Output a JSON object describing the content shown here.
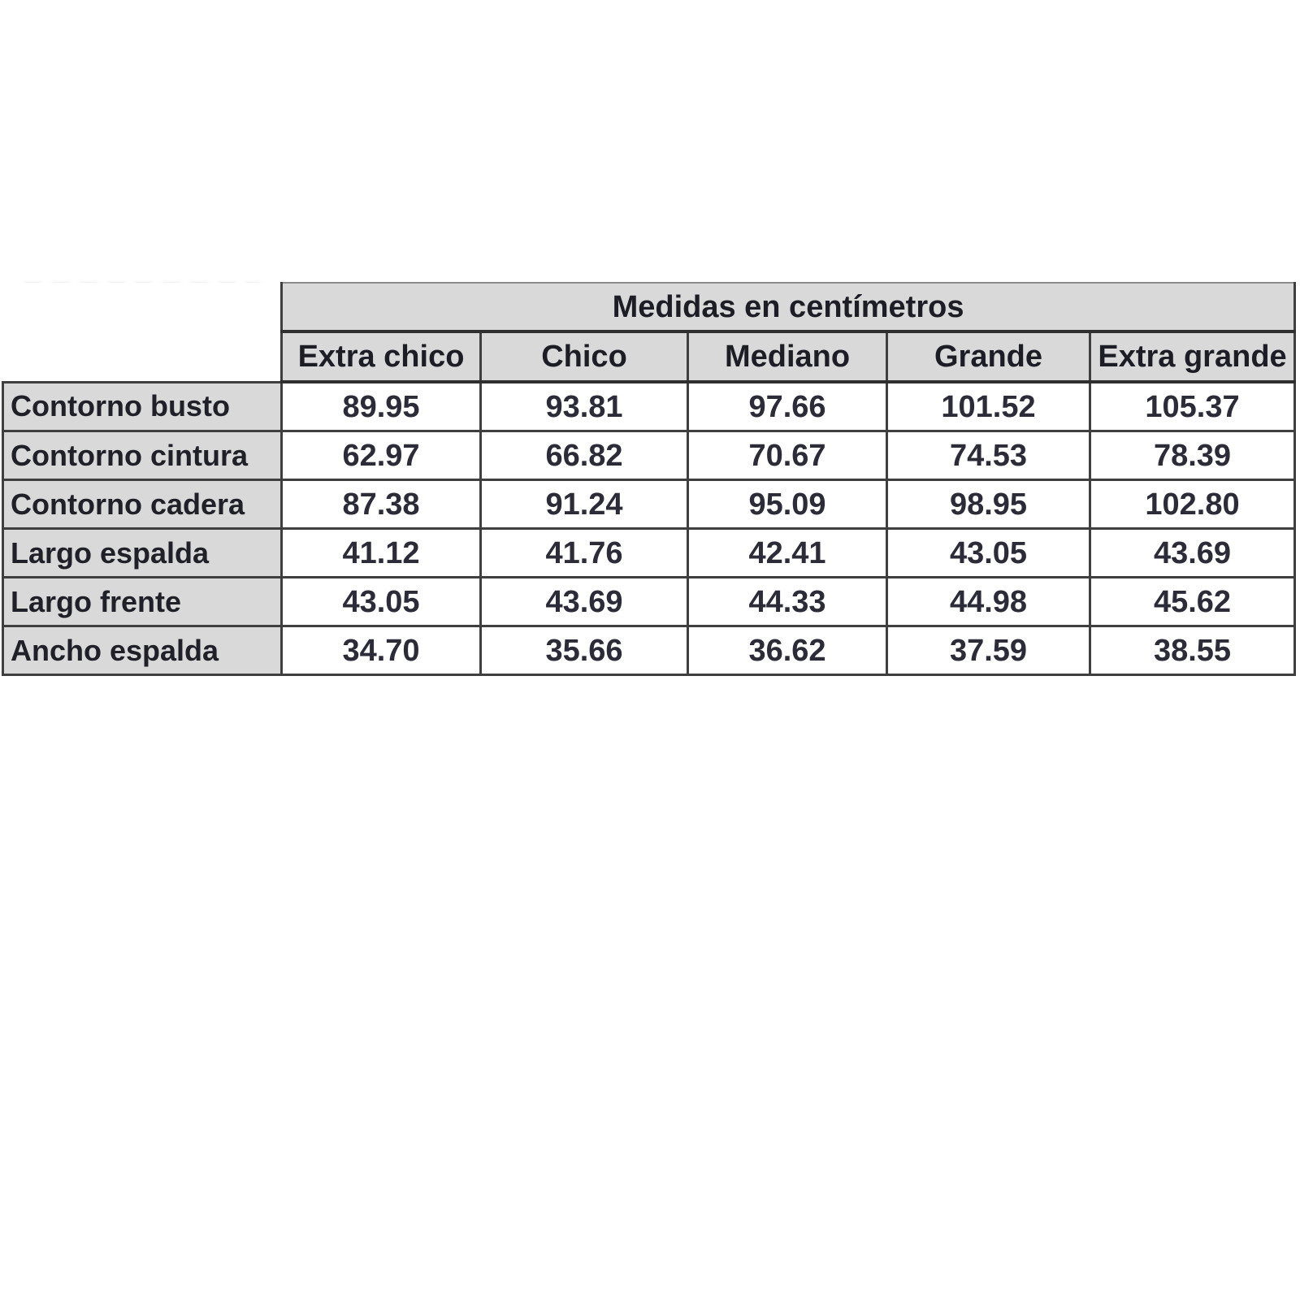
{
  "page": {
    "background": "#ffffff"
  },
  "table": {
    "title": "Medidas en centímetros",
    "columns": [
      "Extra chico",
      "Chico",
      "Mediano",
      "Grande",
      "Extra grande"
    ],
    "rows": [
      {
        "label": "Contorno busto",
        "values": [
          "89.95",
          "93.81",
          "97.66",
          "101.52",
          "105.37"
        ]
      },
      {
        "label": "Contorno cintura",
        "values": [
          "62.97",
          "66.82",
          "70.67",
          "74.53",
          "78.39"
        ]
      },
      {
        "label": "Contorno cadera",
        "values": [
          "87.38",
          "91.24",
          "95.09",
          "98.95",
          "102.80"
        ]
      },
      {
        "label": "Largo espalda",
        "values": [
          "41.12",
          "41.76",
          "42.41",
          "43.05",
          "43.69"
        ]
      },
      {
        "label": "Largo frente",
        "values": [
          "43.05",
          "43.69",
          "44.33",
          "44.98",
          "45.62"
        ]
      },
      {
        "label": "Ancho espalda",
        "values": [
          "34.70",
          "35.66",
          "36.62",
          "37.59",
          "38.55"
        ]
      }
    ],
    "colors": {
      "header_bg": "#d9d9d9",
      "body_bg": "#ffffff",
      "border": "#3f3f3f",
      "text": "#26262e"
    }
  },
  "chart_data": {
    "type": "table",
    "title": "Medidas en centímetros",
    "columns": [
      "Extra chico",
      "Chico",
      "Mediano",
      "Grande",
      "Extra grande"
    ],
    "row_labels": [
      "Contorno busto",
      "Contorno cintura",
      "Contorno cadera",
      "Largo espalda",
      "Largo frente",
      "Ancho espalda"
    ],
    "values": [
      [
        89.95,
        93.81,
        97.66,
        101.52,
        105.37
      ],
      [
        62.97,
        66.82,
        70.67,
        74.53,
        78.39
      ],
      [
        87.38,
        91.24,
        95.09,
        98.95,
        102.8
      ],
      [
        41.12,
        41.76,
        42.41,
        43.05,
        43.69
      ],
      [
        43.05,
        43.69,
        44.33,
        44.98,
        45.62
      ],
      [
        34.7,
        35.66,
        36.62,
        37.59,
        38.55
      ]
    ],
    "units": "cm",
    "grid": true,
    "legend_position": "none"
  }
}
